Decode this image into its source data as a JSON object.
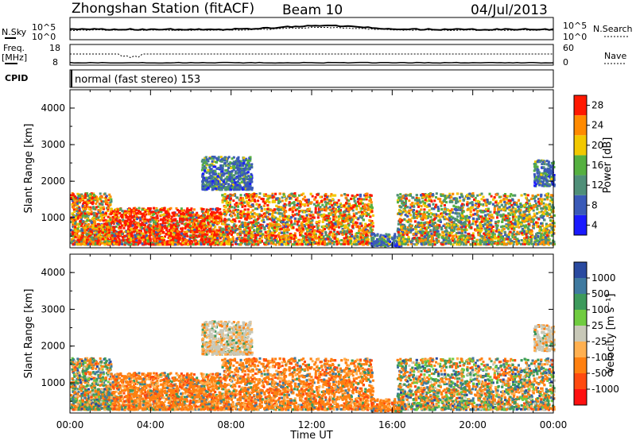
{
  "header": {
    "station": "Zhongshan Station (fitACF)",
    "beam": "Beam 10",
    "date": "04/Jul/2013"
  },
  "summary": {
    "nsky_label": "N.Sky",
    "nsearch_label": "N.Search",
    "freq_label": "Freq.",
    "freq_unit": "[MHz]",
    "nave_label": "Nave",
    "cpid_label": "CPID",
    "cpid_value": "normal (fast stereo) 153",
    "noise_ticks_left": [
      "10^5",
      "10^0"
    ],
    "noise_ticks_right": [
      "10^5",
      "10^0"
    ],
    "freq_ticks": [
      "18",
      "8"
    ],
    "nave_ticks": [
      "60",
      "0"
    ]
  },
  "x_axis": {
    "label": "Time UT",
    "ticks": [
      "00:00",
      "04:00",
      "08:00",
      "12:00",
      "16:00",
      "20:00",
      "00:00"
    ]
  },
  "power_panel": {
    "ylabel": "Slant Range [km]",
    "yticks": [
      "1000",
      "2000",
      "3000",
      "4000"
    ],
    "colorbar_label": "Power [dB]",
    "colorbar_ticks": [
      "4",
      "8",
      "12",
      "16",
      "20",
      "24",
      "28"
    ],
    "colors": [
      "#1a1aff",
      "#3a5ab8",
      "#4f8f78",
      "#55b040",
      "#f2c800",
      "#ff8a00",
      "#ff1800"
    ]
  },
  "velocity_panel": {
    "ylabel": "Slant Range [km]",
    "yticks": [
      "1000",
      "2000",
      "3000",
      "4000"
    ],
    "colorbar_label": "Velocity [m s⁻¹]",
    "colorbar_ticks": [
      "1000",
      "500",
      "100",
      "25",
      "-25",
      "-100",
      "-500",
      "-1000"
    ],
    "colors": [
      "#2a4aa0",
      "#3f7aa0",
      "#3d9a5c",
      "#70cc40",
      "#c8c8b8",
      "#ffb050",
      "#ff8010",
      "#ff4a10",
      "#ff1010"
    ]
  },
  "chart_data": {
    "type": "heatmap",
    "title": "Zhongshan Station (fitACF)",
    "xlabel": "Time UT",
    "ylabel": "Slant Range [km]",
    "xlim": [
      0,
      24
    ],
    "ylim": [
      180,
      4500
    ],
    "x_ticks": [
      "00:00",
      "04:00",
      "08:00",
      "12:00",
      "16:00",
      "20:00",
      "00:00"
    ],
    "y_ticks": [
      1000,
      2000,
      3000,
      4000
    ],
    "power_colorbar": [
      4,
      8,
      12,
      16,
      20,
      24,
      28
    ],
    "velocity_colorbar": [
      1000,
      500,
      100,
      25,
      -25,
      -100,
      -500,
      -1000
    ],
    "scatter_regions": [
      {
        "start_hour": 0,
        "end_hour": 2,
        "min_range_km": 300,
        "max_range_km": 1700,
        "power": "high",
        "velocity": "mixed"
      },
      {
        "start_hour": 2,
        "end_hour": 7.5,
        "min_range_km": 300,
        "max_range_km": 1300,
        "power": "very high",
        "velocity": "negative"
      },
      {
        "start_hour": 7.5,
        "end_hour": 15,
        "min_range_km": 300,
        "max_range_km": 1700,
        "power": "high",
        "velocity": "negative"
      },
      {
        "start_hour": 6.5,
        "end_hour": 9,
        "min_range_km": 1800,
        "max_range_km": 2700,
        "power": "low",
        "velocity": "near zero"
      },
      {
        "start_hour": 14.9,
        "end_hour": 16.5,
        "min_range_km": 250,
        "max_range_km": 600,
        "power": "low",
        "velocity": "negative"
      },
      {
        "start_hour": 16.2,
        "end_hour": 24,
        "min_range_km": 300,
        "max_range_km": 1700,
        "power": "medium",
        "velocity": "mixed"
      },
      {
        "start_hour": 23,
        "end_hour": 24,
        "min_range_km": 1900,
        "max_range_km": 2600,
        "power": "low",
        "velocity": "near zero"
      }
    ]
  }
}
